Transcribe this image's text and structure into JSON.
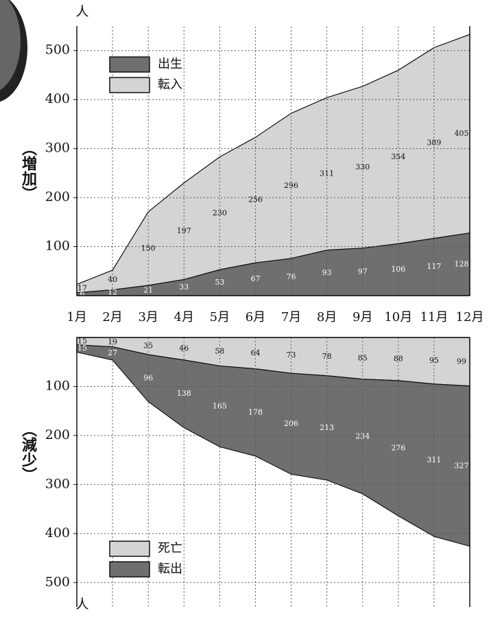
{
  "charts": [
    {
      "type": "stacked-area",
      "y_label": "（増加）",
      "unit": "人",
      "categories": [
        "1月",
        "2月",
        "3月",
        "4月",
        "5月",
        "6月",
        "7月",
        "8月",
        "9月",
        "10月",
        "11月",
        "12月"
      ],
      "ylim": [
        0,
        550
      ],
      "yticks": [
        100,
        200,
        300,
        400,
        500
      ],
      "grid": true,
      "inverted": false,
      "legend": "upper-left",
      "series": [
        {
          "name": "出生",
          "color": "#6f6f6f",
          "values": [
            6,
            12,
            21,
            33,
            53,
            67,
            76,
            93,
            97,
            106,
            117,
            128
          ]
        },
        {
          "name": "転入",
          "color": "#d4d4d4",
          "values": [
            17,
            40,
            150,
            197,
            230,
            256,
            296,
            311,
            330,
            354,
            389,
            405
          ]
        }
      ]
    },
    {
      "type": "stacked-area",
      "y_label": "（減少）",
      "unit": "人",
      "ylim": [
        0,
        550
      ],
      "yticks": [
        100,
        200,
        300,
        400,
        500
      ],
      "grid": true,
      "inverted": true,
      "legend": "lower-left",
      "series": [
        {
          "name": "死亡",
          "color": "#d4d4d4",
          "values": [
            15,
            19,
            35,
            46,
            58,
            64,
            73,
            78,
            85,
            88,
            95,
            99
          ]
        },
        {
          "name": "転出",
          "color": "#6f6f6f",
          "values": [
            15,
            27,
            96,
            138,
            165,
            178,
            206,
            213,
            234,
            276,
            311,
            327
          ]
        }
      ]
    }
  ]
}
